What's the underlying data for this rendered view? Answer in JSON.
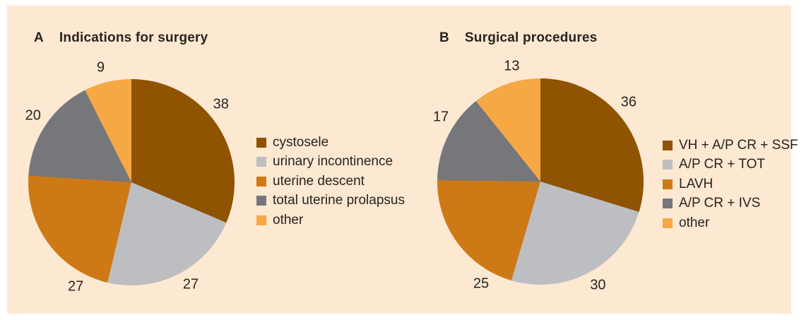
{
  "figure": {
    "background_color": "#fde8d1",
    "text_color": "#282420"
  },
  "chart_data": [
    {
      "type": "pie",
      "panel_letter": "A",
      "title": "Indications for surgery",
      "categories": [
        "cystosele",
        "urinary incontinence",
        "uterine descent",
        "total uterine prolapsus",
        "other"
      ],
      "values": [
        38,
        27,
        27,
        20,
        9
      ],
      "total": 121,
      "colors": [
        "#8f5302",
        "#bcbec2",
        "#cd7a16",
        "#75777b",
        "#f6a844"
      ],
      "start_angle_deg": 0,
      "direction": "clockwise",
      "legend_position": "right",
      "data_labels": "outside",
      "label_angles_deg": [
        49,
        150,
        208,
        304,
        345
      ]
    },
    {
      "type": "pie",
      "panel_letter": "B",
      "title": "Surgical procedures",
      "categories": [
        "VH + A/P CR + SSF",
        "A/P CR + TOT",
        "LAVH",
        "A/P CR + IVS",
        "other"
      ],
      "values": [
        36,
        30,
        25,
        17,
        13
      ],
      "total": 121,
      "colors": [
        "#8f5302",
        "#bcbec2",
        "#cd7a16",
        "#75777b",
        "#f6a844"
      ],
      "start_angle_deg": 0,
      "direction": "clockwise",
      "legend_position": "right",
      "data_labels": "outside",
      "label_angles_deg": [
        48,
        151,
        210,
        303,
        346
      ]
    }
  ]
}
